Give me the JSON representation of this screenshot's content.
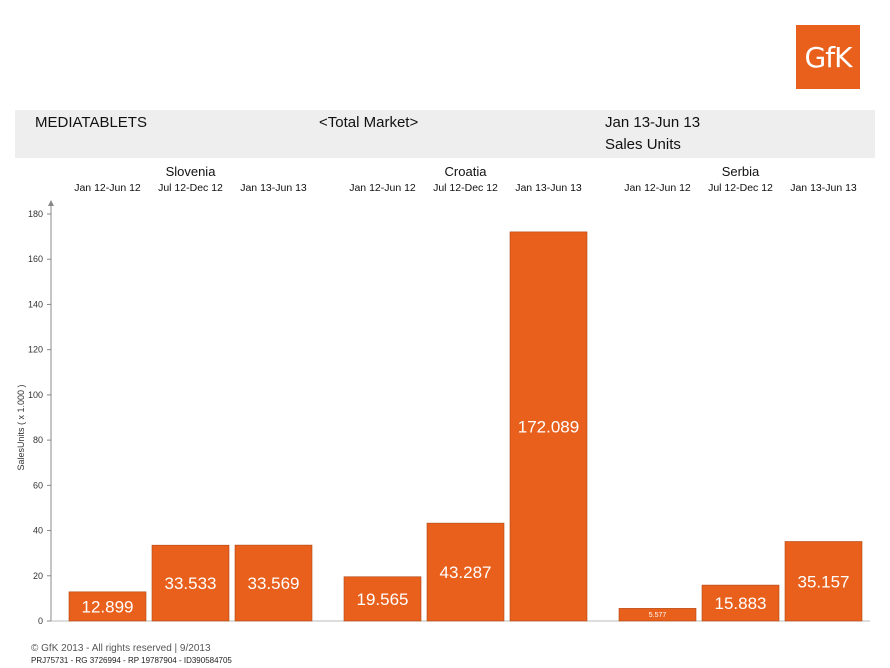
{
  "logo": {
    "text": "GfK"
  },
  "header": {
    "product": "MEDIATABLETS",
    "market": "<Total Market>",
    "period": "Jan 13-Jun 13",
    "measure": "Sales Units"
  },
  "chart_data": {
    "type": "bar",
    "ylabel": "SalesUnits ( x 1.000 )",
    "ylim": [
      0,
      180
    ],
    "yticks": [
      0,
      20,
      40,
      60,
      80,
      100,
      120,
      140,
      160,
      180
    ],
    "grid": false,
    "color": "#e8601c",
    "groups": [
      {
        "name": "Slovenia",
        "categories": [
          "Jan 12-Jun 12",
          "Jul 12-Dec 12",
          "Jan 13-Jun 13"
        ],
        "values": [
          12.899,
          33.533,
          33.569
        ],
        "labels": [
          "12.899",
          "33.533",
          "33.569"
        ]
      },
      {
        "name": "Croatia",
        "categories": [
          "Jan 12-Jun 12",
          "Jul 12-Dec 12",
          "Jan 13-Jun 13"
        ],
        "values": [
          19.565,
          43.287,
          172.089
        ],
        "labels": [
          "19.565",
          "43.287",
          "172.089"
        ]
      },
      {
        "name": "Serbia",
        "categories": [
          "Jan 12-Jun 12",
          "Jul 12-Dec 12",
          "Jan 13-Jun 13"
        ],
        "values": [
          5.577,
          15.883,
          35.157
        ],
        "labels": [
          "5.577",
          "15.883",
          "35.157"
        ]
      }
    ]
  },
  "footer": {
    "copyright": "© GfK 2013 - All rights reserved | 9/2013",
    "ids": "PRJ75731 - RG 3726994 - RP 19787904 - ID390584705"
  }
}
